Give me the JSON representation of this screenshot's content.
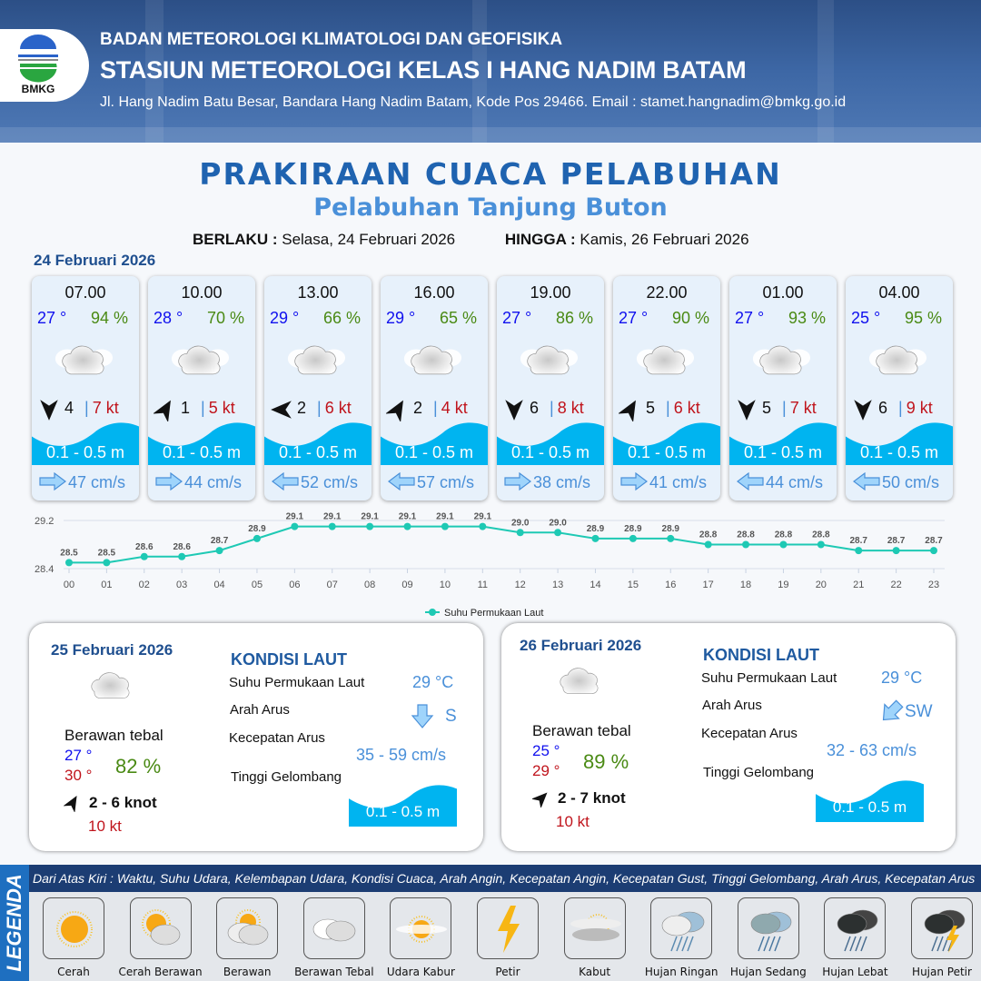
{
  "header": {
    "agency": "BADAN METEOROLOGI KLIMATOLOGI DAN GEOFISIKA",
    "station": "STASIUN METEOROLOGI KELAS I HANG NADIM BATAM",
    "address": "Jl. Hang Nadim Batu Besar, Bandara Hang Nadim Batam, Kode Pos 29466. Email : stamet.hangnadim@bmkg.go.id",
    "logo_text": "BMKG"
  },
  "title": "PRAKIRAAN CUACA PELABUHAN",
  "subtitle": "Pelabuhan Tanjung Buton",
  "validity": {
    "from_label": "BERLAKU :",
    "from": "Selasa, 24 Februari 2026",
    "to_label": "HINGGA :",
    "to": "Kamis, 26 Februari 2026"
  },
  "day1": {
    "date": "24 Februari 2026",
    "cards": [
      {
        "time": "07.00",
        "temp": "27 °",
        "rh": "94 %",
        "weather": "berawan-tebal",
        "wind_arrow_deg": 180,
        "wind": "4",
        "gust": "7 kt",
        "wave": "0.1 - 0.5 m",
        "current_dir": "right",
        "current": "47 cm/s"
      },
      {
        "time": "10.00",
        "temp": "28 °",
        "rh": "70 %",
        "weather": "berawan-tebal",
        "wind_arrow_deg": 30,
        "wind": "1",
        "gust": "5 kt",
        "wave": "0.1 - 0.5 m",
        "current_dir": "right",
        "current": "44 cm/s"
      },
      {
        "time": "13.00",
        "temp": "29 °",
        "rh": "66 %",
        "weather": "berawan-tebal",
        "wind_arrow_deg": 270,
        "wind": "2",
        "gust": "6 kt",
        "wave": "0.1 - 0.5 m",
        "current_dir": "left",
        "current": "52 cm/s"
      },
      {
        "time": "16.00",
        "temp": "29 °",
        "rh": "65 %",
        "weather": "berawan-tebal",
        "wind_arrow_deg": 30,
        "wind": "2",
        "gust": "4 kt",
        "wave": "0.1 - 0.5 m",
        "current_dir": "left",
        "current": "57 cm/s"
      },
      {
        "time": "19.00",
        "temp": "27 °",
        "rh": "86 %",
        "weather": "berawan-tebal",
        "wind_arrow_deg": 180,
        "wind": "6",
        "gust": "8 kt",
        "wave": "0.1 - 0.5 m",
        "current_dir": "right",
        "current": "38 cm/s"
      },
      {
        "time": "22.00",
        "temp": "27 °",
        "rh": "90 %",
        "weather": "berawan-tebal",
        "wind_arrow_deg": 30,
        "wind": "5",
        "gust": "6 kt",
        "wave": "0.1 - 0.5 m",
        "current_dir": "right",
        "current": "41 cm/s"
      },
      {
        "time": "01.00",
        "temp": "27 °",
        "rh": "93 %",
        "weather": "berawan-tebal",
        "wind_arrow_deg": 180,
        "wind": "5",
        "gust": "7 kt",
        "wave": "0.1 - 0.5 m",
        "current_dir": "left",
        "current": "44 cm/s"
      },
      {
        "time": "04.00",
        "temp": "25 °",
        "rh": "95 %",
        "weather": "berawan-tebal",
        "wind_arrow_deg": 180,
        "wind": "6",
        "gust": "9 kt",
        "wave": "0.1 - 0.5 m",
        "current_dir": "left",
        "current": "50 cm/s"
      }
    ]
  },
  "chart_data": {
    "type": "line",
    "categories": [
      "00",
      "01",
      "02",
      "03",
      "04",
      "05",
      "06",
      "07",
      "08",
      "09",
      "10",
      "11",
      "12",
      "13",
      "14",
      "15",
      "16",
      "17",
      "18",
      "19",
      "20",
      "21",
      "22",
      "23"
    ],
    "series": [
      {
        "name": "Suhu Permukaan Laut",
        "values": [
          28.5,
          28.5,
          28.6,
          28.6,
          28.7,
          28.9,
          29.1,
          29.1,
          29.1,
          29.1,
          29.1,
          29.1,
          29.0,
          29.0,
          28.9,
          28.9,
          28.9,
          28.8,
          28.8,
          28.8,
          28.8,
          28.7,
          28.7,
          28.7
        ]
      }
    ],
    "yticks": [
      "28.4",
      "29.2"
    ],
    "ylim": [
      28.4,
      29.2
    ],
    "color": "#1ec9b4",
    "legend": "bottom-center",
    "grid": true
  },
  "panels": [
    {
      "date": "25 Februari 2026",
      "weather": "berawan-tebal",
      "condition": "Berawan tebal",
      "tmin": "27 °",
      "tmax": "30 °",
      "rh": "82 %",
      "wind_arrow_deg": 30,
      "wind": "2  - 6 knot",
      "gust": "10 kt",
      "kondisi_label": "KONDISI LAUT",
      "sst_label": "Suhu Permukaan Laut",
      "sst": "29 °C",
      "dir_label": "Arah Arus",
      "dir": "S",
      "dir_arrow_deg": 180,
      "speed_label": "Kecepatan Arus",
      "speed": "35  - 59 cm/s",
      "wave_label": "Tinggi Gelombang",
      "wave": "0.1 - 0.5 m"
    },
    {
      "date": "26 Februari 2026",
      "weather": "berawan-tebal",
      "condition": "Berawan tebal",
      "tmin": "25 °",
      "tmax": "29 °",
      "rh": "89 %",
      "wind_arrow_deg": 45,
      "wind": "2  - 7 knot",
      "gust": "10 kt",
      "kondisi_label": "KONDISI LAUT",
      "sst_label": "Suhu Permukaan Laut",
      "sst": "29 °C",
      "dir_label": "Arah Arus",
      "dir": "SW",
      "dir_arrow_deg": 225,
      "speed_label": "Kecepatan Arus",
      "speed": "32 - 63 cm/s",
      "wave_label": "Tinggi Gelombang",
      "wave": "0.1 - 0.5 m"
    }
  ],
  "legend": {
    "title": "LEGENDA",
    "description": "Dari Atas Kiri : Waktu, Suhu Udara, Kelembapan Udara, Kondisi Cuaca, Arah Angin, Kecepatan Angin, Kecepatan Gust, Tinggi Gelombang, Arah Arus, Kecepatan Arus",
    "items": [
      {
        "label": "Cerah",
        "icon": "sun"
      },
      {
        "label": "Cerah Berawan",
        "icon": "sun-cloud"
      },
      {
        "label": "Berawan",
        "icon": "cloudy"
      },
      {
        "label": "Berawan Tebal",
        "icon": "thick-cloud"
      },
      {
        "label": "Udara Kabur",
        "icon": "haze"
      },
      {
        "label": "Petir",
        "icon": "lightning"
      },
      {
        "label": "Kabut",
        "icon": "fog"
      },
      {
        "label": "Hujan Ringan",
        "icon": "light-rain"
      },
      {
        "label": "Hujan Sedang",
        "icon": "moderate-rain"
      },
      {
        "label": "Hujan Lebat",
        "icon": "heavy-rain"
      },
      {
        "label": "Hujan Petir",
        "icon": "thunderstorm"
      }
    ]
  },
  "colors": {
    "header_bg": "#3d67a5",
    "title": "#1f63b0",
    "wave": "#00b4f0",
    "temp": "#1010ee",
    "rh": "#4a8a14",
    "gust": "#c0141c",
    "current": "#4a90d9"
  }
}
